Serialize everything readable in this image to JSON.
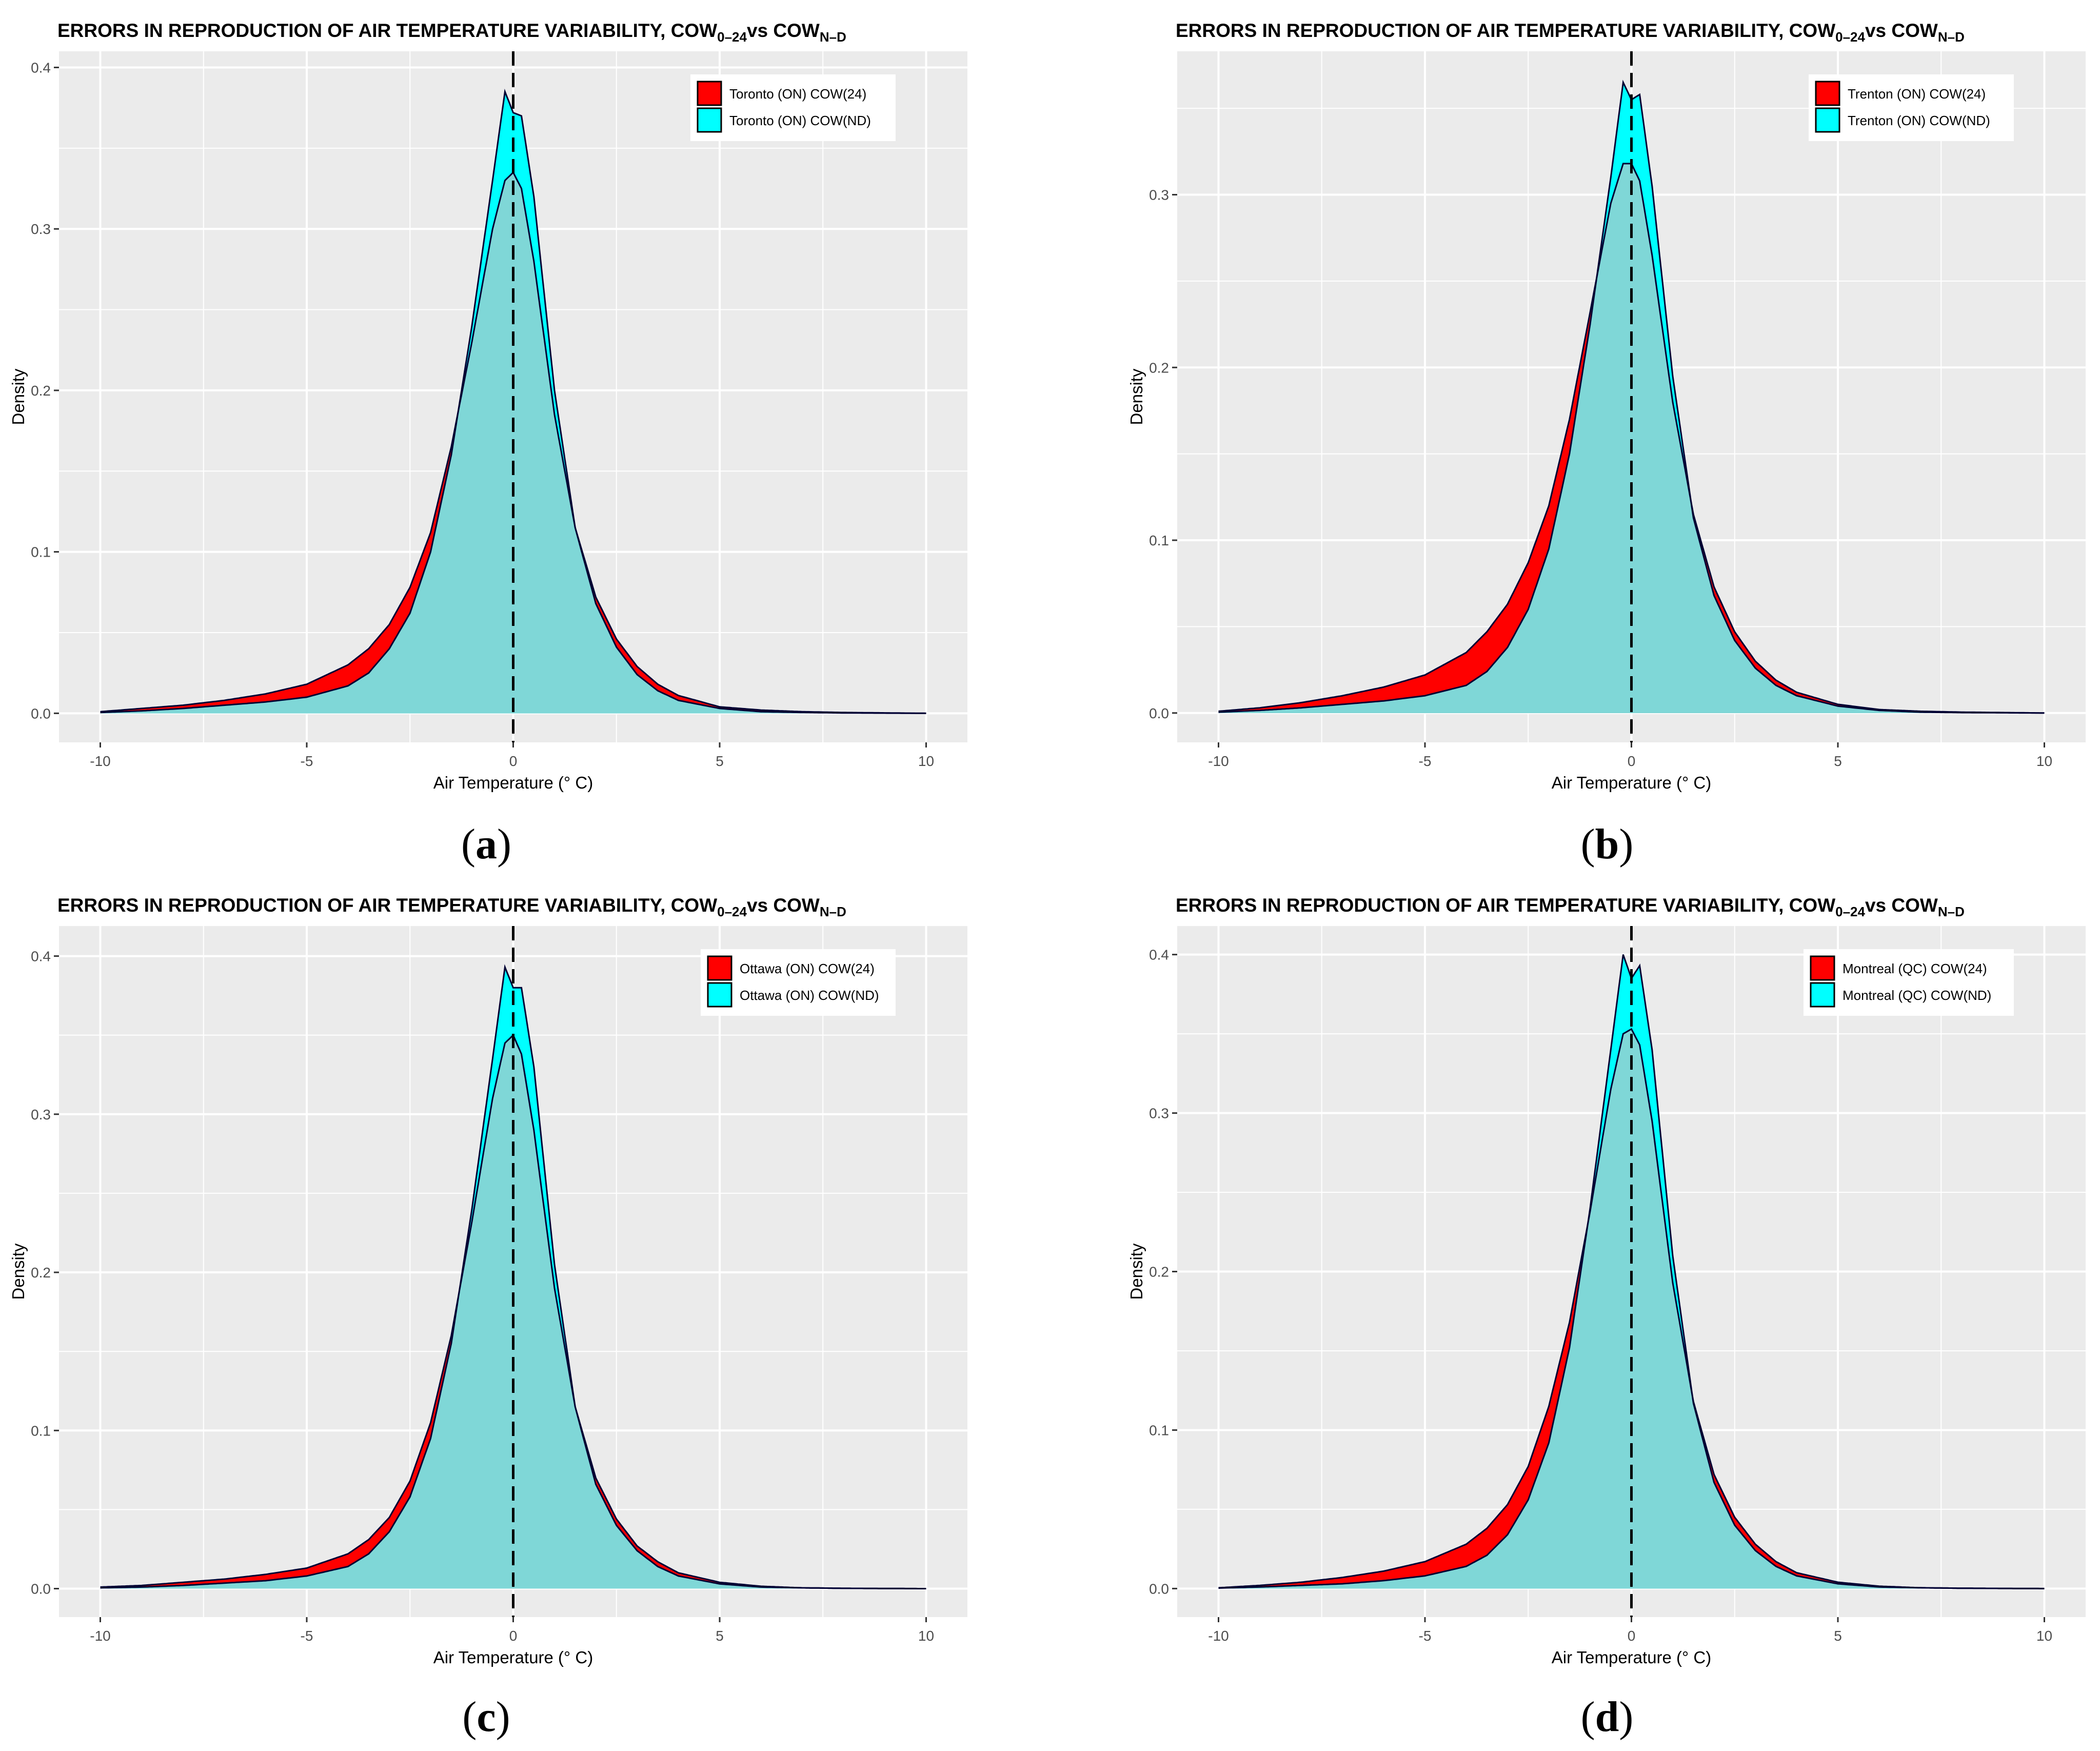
{
  "figure": {
    "title_main": "ERRORS IN REPRODUCTION OF AIR TEMPERATURE VARIABILITY, COW",
    "title_sub1": "0–24",
    "title_mid": "vs COW",
    "title_sub2": "N–D",
    "xlabel": "Air Temperature (° C)",
    "ylabel": "Density"
  },
  "colors": {
    "panel_bg": "#EBEBEB",
    "grid": "#FFFFFF",
    "cow24_fill": "#FF0000",
    "cownd_fill": "#00FFFF",
    "overlap_fill": "#7FD7D7",
    "outline": "#000033",
    "text": "#000000",
    "tick_text": "#4D4D4D"
  },
  "chart_data": [
    {
      "type": "area",
      "panel_label": "a",
      "title": "ERRORS IN REPRODUCTION OF AIR TEMPERATURE VARIABILITY, COW0–24 vs COWN–D",
      "xlabel": "Air Temperature (° C)",
      "ylabel": "Density",
      "xlim": [
        -11,
        11
      ],
      "ylim": [
        -0.018,
        0.41
      ],
      "xticks": [
        -10,
        -5,
        0,
        5,
        10
      ],
      "yticks": [
        0.0,
        0.1,
        0.2,
        0.3,
        0.4
      ],
      "vline_x": 0,
      "legend_position": "top-right",
      "series": [
        {
          "name": "Toronto (ON)  COW(24)",
          "color": "#FF0000",
          "x": [
            -10,
            -9,
            -8,
            -7,
            -6,
            -5,
            -4,
            -3.5,
            -3,
            -2.5,
            -2,
            -1.5,
            -1,
            -0.5,
            -0.2,
            0,
            0.2,
            0.5,
            1,
            1.5,
            2,
            2.5,
            3,
            3.5,
            4,
            5,
            6,
            7,
            8,
            10
          ],
          "y": [
            0.001,
            0.003,
            0.005,
            0.008,
            0.012,
            0.018,
            0.03,
            0.04,
            0.055,
            0.078,
            0.112,
            0.165,
            0.23,
            0.3,
            0.33,
            0.335,
            0.325,
            0.28,
            0.185,
            0.115,
            0.072,
            0.046,
            0.029,
            0.018,
            0.011,
            0.004,
            0.002,
            0.001,
            0.0005,
            0.0
          ]
        },
        {
          "name": "Toronto (ON)  COW(ND)",
          "color": "#00FFFF",
          "x": [
            -10,
            -9,
            -8,
            -7,
            -6,
            -5,
            -4,
            -3.5,
            -3,
            -2.5,
            -2,
            -1.5,
            -1,
            -0.5,
            -0.2,
            0,
            0.2,
            0.5,
            1,
            1.5,
            2,
            2.5,
            3,
            3.5,
            4,
            5,
            6,
            7,
            8,
            10
          ],
          "y": [
            0.0005,
            0.0015,
            0.003,
            0.005,
            0.007,
            0.01,
            0.017,
            0.025,
            0.04,
            0.062,
            0.1,
            0.16,
            0.24,
            0.33,
            0.385,
            0.372,
            0.37,
            0.32,
            0.2,
            0.115,
            0.068,
            0.041,
            0.024,
            0.014,
            0.008,
            0.003,
            0.001,
            0.0005,
            0.0002,
            0.0
          ]
        }
      ]
    },
    {
      "type": "area",
      "panel_label": "b",
      "title": "ERRORS IN REPRODUCTION OF AIR TEMPERATURE VARIABILITY, COW0–24 vs COWN–D",
      "xlabel": "Air Temperature (° C)",
      "ylabel": "Density",
      "xlim": [
        -11,
        11
      ],
      "ylim": [
        -0.017,
        0.383
      ],
      "xticks": [
        -10,
        -5,
        0,
        5,
        10
      ],
      "yticks": [
        0.0,
        0.1,
        0.2,
        0.3
      ],
      "vline_x": 0,
      "legend_position": "top-right",
      "series": [
        {
          "name": "Trenton (ON)  COW(24)",
          "color": "#FF0000",
          "x": [
            -10,
            -9,
            -8,
            -7,
            -6,
            -5,
            -4,
            -3.5,
            -3,
            -2.5,
            -2,
            -1.5,
            -1,
            -0.5,
            -0.2,
            0,
            0.2,
            0.5,
            1,
            1.5,
            2,
            2.5,
            3,
            3.5,
            4,
            5,
            6,
            7,
            8,
            10
          ],
          "y": [
            0.001,
            0.003,
            0.006,
            0.01,
            0.015,
            0.022,
            0.035,
            0.047,
            0.063,
            0.087,
            0.12,
            0.17,
            0.232,
            0.295,
            0.318,
            0.318,
            0.308,
            0.265,
            0.18,
            0.115,
            0.073,
            0.047,
            0.03,
            0.019,
            0.012,
            0.005,
            0.002,
            0.001,
            0.0005,
            0.0
          ]
        },
        {
          "name": "Trenton (ON)  COW(ND)",
          "color": "#00FFFF",
          "x": [
            -10,
            -9,
            -8,
            -7,
            -6,
            -5,
            -4,
            -3.5,
            -3,
            -2.5,
            -2,
            -1.5,
            -1,
            -0.5,
            -0.2,
            0,
            0.2,
            0.5,
            1,
            1.5,
            2,
            2.5,
            3,
            3.5,
            4,
            5,
            6,
            7,
            8,
            10
          ],
          "y": [
            0.0005,
            0.0015,
            0.003,
            0.005,
            0.007,
            0.01,
            0.016,
            0.024,
            0.038,
            0.06,
            0.095,
            0.15,
            0.225,
            0.31,
            0.365,
            0.355,
            0.358,
            0.305,
            0.195,
            0.113,
            0.068,
            0.042,
            0.026,
            0.016,
            0.01,
            0.004,
            0.0015,
            0.0005,
            0.0002,
            0.0
          ]
        }
      ]
    },
    {
      "type": "area",
      "panel_label": "c",
      "title": "ERRORS IN REPRODUCTION OF AIR TEMPERATURE VARIABILITY, COW0–24 vs COWN–D",
      "xlabel": "Air Temperature (° C)",
      "ylabel": "Density",
      "xlim": [
        -11,
        11
      ],
      "ylim": [
        -0.018,
        0.419
      ],
      "xticks": [
        -10,
        -5,
        0,
        5,
        10
      ],
      "yticks": [
        0.0,
        0.1,
        0.2,
        0.3,
        0.4
      ],
      "vline_x": 0,
      "legend_position": "top-right",
      "series": [
        {
          "name": "Ottawa (ON)  COW(24)",
          "color": "#FF0000",
          "x": [
            -10,
            -9,
            -8,
            -7,
            -6,
            -5,
            -4,
            -3.5,
            -3,
            -2.5,
            -2,
            -1.5,
            -1,
            -0.5,
            -0.2,
            0,
            0.2,
            0.5,
            1,
            1.5,
            2,
            2.5,
            3,
            3.5,
            4,
            5,
            6,
            7,
            8,
            10
          ],
          "y": [
            0.001,
            0.002,
            0.004,
            0.006,
            0.009,
            0.013,
            0.022,
            0.031,
            0.045,
            0.068,
            0.105,
            0.16,
            0.232,
            0.31,
            0.345,
            0.35,
            0.338,
            0.29,
            0.19,
            0.115,
            0.07,
            0.044,
            0.027,
            0.017,
            0.01,
            0.004,
            0.0015,
            0.0005,
            0.0002,
            0.0
          ]
        },
        {
          "name": "Ottawa (ON)  COW(ND)",
          "color": "#00FFFF",
          "x": [
            -10,
            -9,
            -8,
            -7,
            -6,
            -5,
            -4,
            -3.5,
            -3,
            -2.5,
            -2,
            -1.5,
            -1,
            -0.5,
            -0.2,
            0,
            0.2,
            0.5,
            1,
            1.5,
            2,
            2.5,
            3,
            3.5,
            4,
            5,
            6,
            7,
            8,
            10
          ],
          "y": [
            0.0005,
            0.001,
            0.002,
            0.0035,
            0.005,
            0.008,
            0.014,
            0.022,
            0.036,
            0.058,
            0.095,
            0.155,
            0.24,
            0.335,
            0.393,
            0.38,
            0.38,
            0.33,
            0.205,
            0.115,
            0.066,
            0.04,
            0.024,
            0.014,
            0.008,
            0.003,
            0.001,
            0.0005,
            0.0002,
            0.0
          ]
        }
      ]
    },
    {
      "type": "area",
      "panel_label": "d",
      "title": "ERRORS IN REPRODUCTION OF AIR TEMPERATURE VARIABILITY, COW0–24 vs COWN–D",
      "xlabel": "Air Temperature (° C)",
      "ylabel": "Density",
      "xlim": [
        -11,
        11
      ],
      "ylim": [
        -0.018,
        0.418
      ],
      "xticks": [
        -10,
        -5,
        0,
        5,
        10
      ],
      "yticks": [
        0.0,
        0.1,
        0.2,
        0.3,
        0.4
      ],
      "vline_x": 0,
      "legend_position": "top-right",
      "series": [
        {
          "name": "Montreal (QC)  COW(24)",
          "color": "#FF0000",
          "x": [
            -10,
            -9,
            -8,
            -7,
            -6,
            -5,
            -4,
            -3.5,
            -3,
            -2.5,
            -2,
            -1.5,
            -1,
            -0.5,
            -0.2,
            0,
            0.2,
            0.5,
            1,
            1.5,
            2,
            2.5,
            3,
            3.5,
            4,
            5,
            6,
            7,
            8,
            10
          ],
          "y": [
            0.0005,
            0.002,
            0.004,
            0.007,
            0.011,
            0.017,
            0.028,
            0.038,
            0.053,
            0.077,
            0.115,
            0.168,
            0.238,
            0.315,
            0.35,
            0.353,
            0.343,
            0.295,
            0.193,
            0.118,
            0.072,
            0.045,
            0.028,
            0.017,
            0.01,
            0.004,
            0.0015,
            0.0005,
            0.0002,
            0.0
          ]
        },
        {
          "name": "Montreal (QC)  COW(ND)",
          "color": "#00FFFF",
          "x": [
            -10,
            -9,
            -8,
            -7,
            -6,
            -5,
            -4,
            -3.5,
            -3,
            -2.5,
            -2,
            -1.5,
            -1,
            -0.5,
            -0.2,
            0,
            0.2,
            0.5,
            1,
            1.5,
            2,
            2.5,
            3,
            3.5,
            4,
            5,
            6,
            7,
            8,
            10
          ],
          "y": [
            0.0003,
            0.001,
            0.002,
            0.003,
            0.005,
            0.008,
            0.014,
            0.021,
            0.034,
            0.056,
            0.092,
            0.152,
            0.24,
            0.34,
            0.4,
            0.385,
            0.393,
            0.34,
            0.21,
            0.117,
            0.067,
            0.04,
            0.024,
            0.014,
            0.008,
            0.003,
            0.001,
            0.0005,
            0.0002,
            0.0
          ]
        }
      ]
    }
  ]
}
